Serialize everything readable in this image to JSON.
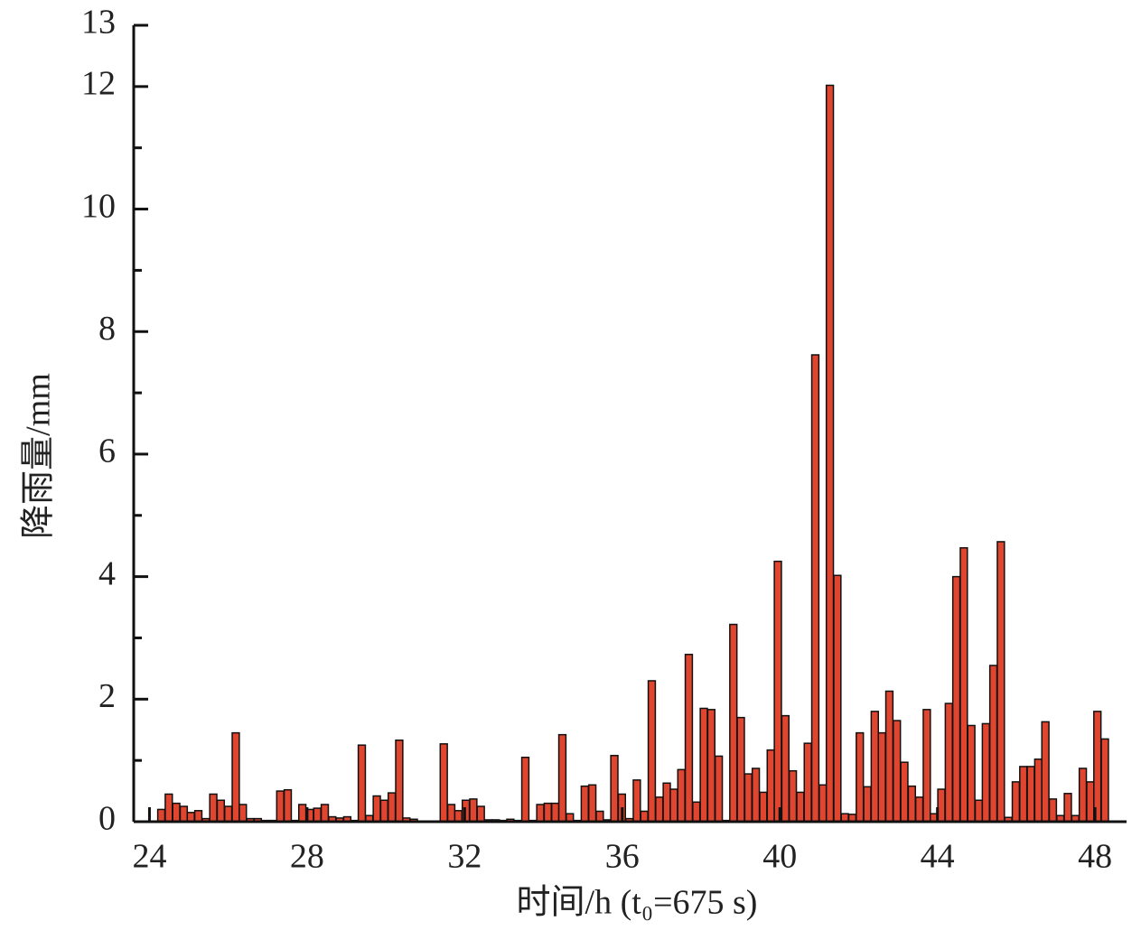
{
  "chart_data": {
    "type": "bar",
    "xlabel": "时间/h (t₀=675 s)",
    "ylabel": "降雨量/mm",
    "color": "#e0452f",
    "bar_width": 0.18,
    "xlim": [
      23.6,
      48.8
    ],
    "xticks": [
      24,
      28,
      32,
      36,
      40,
      44,
      48
    ],
    "ylim": [
      0,
      13
    ],
    "yticks": [
      0,
      2,
      4,
      6,
      8,
      10,
      12,
      13
    ],
    "yminorticks": [
      1,
      3,
      5,
      7,
      9,
      11
    ],
    "x": [
      24.3,
      24.49,
      24.68,
      24.87,
      25.05,
      25.24,
      25.43,
      25.62,
      25.81,
      26.0,
      26.19,
      26.37,
      26.56,
      26.75,
      26.94,
      27.13,
      27.32,
      27.51,
      27.69,
      27.88,
      28.07,
      28.26,
      28.45,
      28.64,
      28.83,
      29.02,
      29.2,
      29.39,
      29.58,
      29.77,
      29.96,
      30.15,
      30.34,
      30.52,
      30.71,
      30.9,
      31.09,
      31.28,
      31.47,
      31.66,
      31.84,
      32.03,
      32.22,
      32.41,
      32.6,
      32.79,
      32.98,
      33.16,
      33.35,
      33.54,
      33.73,
      33.92,
      34.11,
      34.3,
      34.48,
      34.67,
      34.86,
      35.05,
      35.24,
      35.43,
      35.62,
      35.8,
      35.99,
      36.18,
      36.37,
      36.56,
      36.75,
      36.94,
      37.13,
      37.31,
      37.5,
      37.69,
      37.88,
      38.07,
      38.26,
      38.45,
      38.63,
      38.82,
      39.01,
      39.2,
      39.39,
      39.58,
      39.77,
      39.95,
      40.14,
      40.33,
      40.52,
      40.71,
      40.9,
      41.09,
      41.27,
      41.46,
      41.65,
      41.84,
      42.03,
      42.22,
      42.41,
      42.59,
      42.78,
      42.97,
      43.16,
      43.35,
      43.54,
      43.73,
      43.91,
      44.1,
      44.29,
      44.48,
      44.67,
      44.86,
      45.05,
      45.23,
      45.42,
      45.61,
      45.8,
      45.99,
      46.18,
      46.37,
      46.56,
      46.74,
      46.93,
      47.12,
      47.31,
      47.5,
      47.69,
      47.88,
      48.06,
      48.25
    ],
    "values": [
      0.2,
      0.45,
      0.3,
      0.25,
      0.15,
      0.18,
      0.05,
      0.45,
      0.35,
      0.25,
      1.45,
      0.28,
      0.05,
      0.05,
      0.02,
      0.02,
      0.5,
      0.52,
      0.02,
      0.28,
      0.2,
      0.22,
      0.28,
      0.08,
      0.06,
      0.08,
      0.02,
      1.25,
      0.1,
      0.42,
      0.35,
      0.47,
      1.33,
      0.06,
      0.04,
      0.01,
      0.01,
      0.01,
      1.27,
      0.28,
      0.18,
      0.35,
      0.37,
      0.25,
      0.03,
      0.03,
      0.02,
      0.04,
      0.02,
      1.05,
      0.02,
      0.28,
      0.3,
      0.3,
      1.42,
      0.13,
      0.02,
      0.58,
      0.6,
      0.17,
      0.03,
      1.08,
      0.45,
      0.05,
      0.68,
      0.17,
      2.3,
      0.4,
      0.63,
      0.53,
      0.85,
      2.73,
      0.32,
      1.85,
      1.83,
      1.07,
      0.02,
      3.22,
      1.7,
      0.78,
      0.87,
      0.48,
      1.17,
      4.25,
      1.73,
      0.83,
      0.48,
      1.28,
      7.62,
      0.6,
      12.02,
      4.02,
      0.13,
      0.12,
      1.45,
      0.57,
      1.8,
      1.45,
      2.13,
      1.65,
      0.97,
      0.58,
      0.4,
      1.83,
      0.13,
      0.53,
      1.93,
      4.0,
      4.47,
      1.57,
      0.35,
      1.6,
      2.55,
      4.57,
      0.07,
      0.65,
      0.9,
      0.9,
      1.02,
      1.63,
      0.37,
      0.1,
      0.46,
      0.1,
      0.87,
      0.65,
      1.8,
      1.35
    ]
  }
}
